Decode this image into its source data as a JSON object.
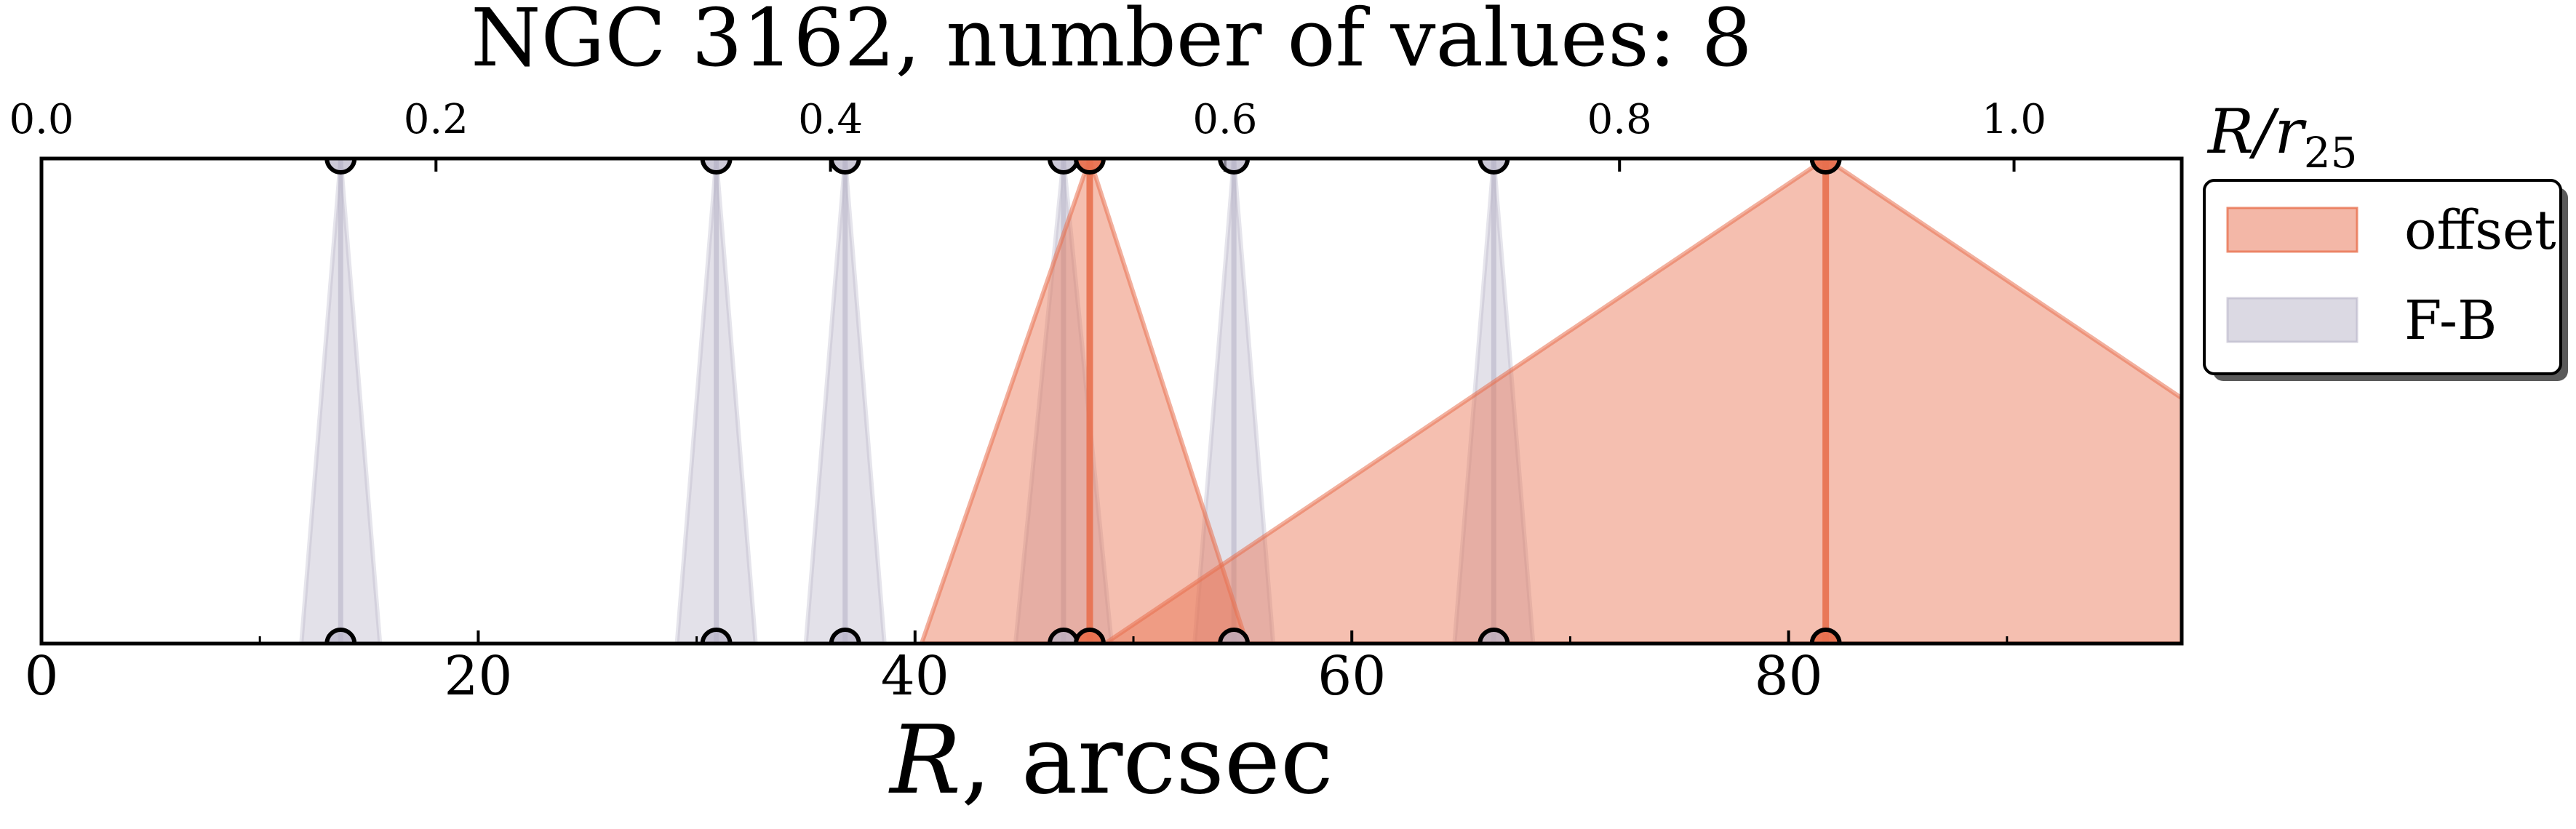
{
  "chart_data": {
    "type": "area",
    "title": "NGC 3162, number of values: 8",
    "xlabel_main": "R",
    "xlabel_suffix": ", arcsec",
    "top_axis_label_main": "R/r",
    "top_axis_label_sub": "25",
    "xlim": [
      0,
      98
    ],
    "x_ticks": [
      0,
      20,
      40,
      60,
      80
    ],
    "top_xlim": [
      0.0,
      1.085
    ],
    "top_x_ticks": [
      "0.0",
      "0.2",
      "0.4",
      "0.6",
      "0.8",
      "1.0"
    ],
    "legend_position": "outside-right",
    "colors": {
      "offset": "#e8704f",
      "fb": "#b8b4c8"
    },
    "series": [
      {
        "name": "offset",
        "color": "#e8704f",
        "triangles": [
          {
            "center": 48.0,
            "left": 40.3,
            "right": 55.2
          },
          {
            "center": 81.7,
            "left": 48.7,
            "right": 114.7
          }
        ]
      },
      {
        "name": "F-B",
        "color": "#b8b4c8",
        "triangles": [
          {
            "center": 13.7,
            "left": 11.9,
            "right": 15.5
          },
          {
            "center": 30.9,
            "left": 29.1,
            "right": 32.7
          },
          {
            "center": 36.8,
            "left": 35.0,
            "right": 38.6
          },
          {
            "center": 46.8,
            "left": 44.6,
            "right": 49.0
          },
          {
            "center": 54.6,
            "left": 52.8,
            "right": 56.4
          },
          {
            "center": 66.5,
            "left": 64.7,
            "right": 68.3
          }
        ]
      }
    ]
  }
}
